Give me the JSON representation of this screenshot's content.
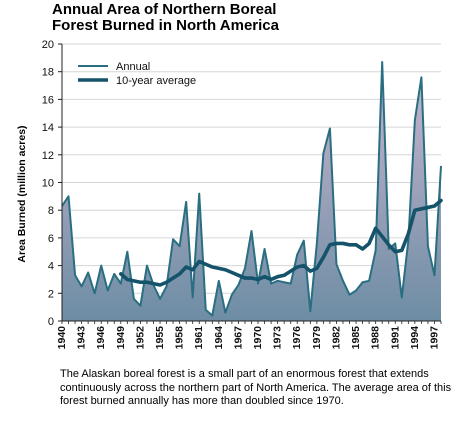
{
  "title_line1": "Annual Area of Northern Boreal",
  "title_line2": "Forest Burned in North America",
  "caption": "The Alaskan boreal forest is a small part of an enormous forest that extends continuously across the northern part of North America.  The average area of this forest burned annually has more than doubled since 1970.",
  "colors": {
    "annual": "#2a6e82",
    "average": "#15536b",
    "fill_top": "#c9b6cf",
    "fill_bottom": "#6d8da4"
  },
  "chart_data": {
    "type": "area",
    "ylabel": "Area Burned (million acres)",
    "xlabel": "",
    "ylim": [
      0,
      20
    ],
    "xlim": [
      1940,
      1998
    ],
    "yticks": [
      0,
      2,
      4,
      6,
      8,
      10,
      12,
      14,
      16,
      18,
      20
    ],
    "xticks": [
      1940,
      1943,
      1946,
      1949,
      1952,
      1955,
      1958,
      1961,
      1964,
      1967,
      1970,
      1973,
      1976,
      1979,
      1982,
      1985,
      1988,
      1991,
      1994,
      1997
    ],
    "legend_position": "top-left",
    "series": [
      {
        "name": "Annual",
        "x": [
          1940,
          1941,
          1942,
          1943,
          1944,
          1945,
          1946,
          1947,
          1948,
          1949,
          1950,
          1951,
          1952,
          1953,
          1954,
          1955,
          1956,
          1957,
          1958,
          1959,
          1960,
          1961,
          1962,
          1963,
          1964,
          1965,
          1966,
          1967,
          1968,
          1969,
          1970,
          1971,
          1972,
          1973,
          1974,
          1975,
          1976,
          1977,
          1978,
          1979,
          1980,
          1981,
          1982,
          1983,
          1984,
          1985,
          1986,
          1987,
          1988,
          1989,
          1990,
          1991,
          1992,
          1993,
          1994,
          1995,
          1996,
          1997,
          1998
        ],
        "values": [
          8.3,
          9.0,
          3.3,
          2.5,
          3.5,
          2.0,
          4.0,
          2.2,
          3.4,
          2.7,
          5.0,
          1.6,
          1.1,
          4.0,
          2.6,
          1.6,
          2.5,
          5.9,
          5.4,
          8.6,
          1.7,
          9.2,
          0.8,
          0.4,
          2.9,
          0.6,
          1.9,
          2.6,
          3.8,
          6.5,
          2.7,
          5.2,
          2.7,
          2.9,
          2.8,
          2.7,
          4.8,
          5.8,
          0.7,
          5.6,
          12.1,
          13.9,
          4.1,
          2.9,
          1.9,
          2.2,
          2.8,
          2.9,
          5.1,
          18.7,
          5.2,
          5.6,
          1.7,
          5.8,
          14.5,
          17.6,
          5.4,
          3.3,
          11.2
        ]
      },
      {
        "name": "10-year average",
        "x": [
          1949,
          1950,
          1951,
          1952,
          1953,
          1954,
          1955,
          1956,
          1957,
          1958,
          1959,
          1960,
          1961,
          1962,
          1963,
          1964,
          1965,
          1966,
          1967,
          1968,
          1969,
          1970,
          1971,
          1972,
          1973,
          1974,
          1975,
          1976,
          1977,
          1978,
          1979,
          1980,
          1981,
          1982,
          1983,
          1984,
          1985,
          1986,
          1987,
          1988,
          1989,
          1990,
          1991,
          1992,
          1993,
          1994,
          1995,
          1996,
          1997,
          1998
        ],
        "values": [
          3.4,
          3.0,
          2.9,
          2.8,
          2.8,
          2.7,
          2.6,
          2.8,
          3.1,
          3.4,
          3.9,
          3.7,
          4.3,
          4.1,
          3.9,
          3.8,
          3.7,
          3.5,
          3.3,
          3.1,
          3.1,
          3.0,
          3.2,
          3.0,
          3.2,
          3.3,
          3.6,
          3.9,
          4.0,
          3.6,
          3.8,
          4.6,
          5.5,
          5.6,
          5.6,
          5.5,
          5.5,
          5.2,
          5.6,
          6.7,
          6.1,
          5.5,
          5.0,
          5.1,
          6.3,
          8.0,
          8.1,
          8.2,
          8.3,
          8.7
        ]
      }
    ]
  }
}
